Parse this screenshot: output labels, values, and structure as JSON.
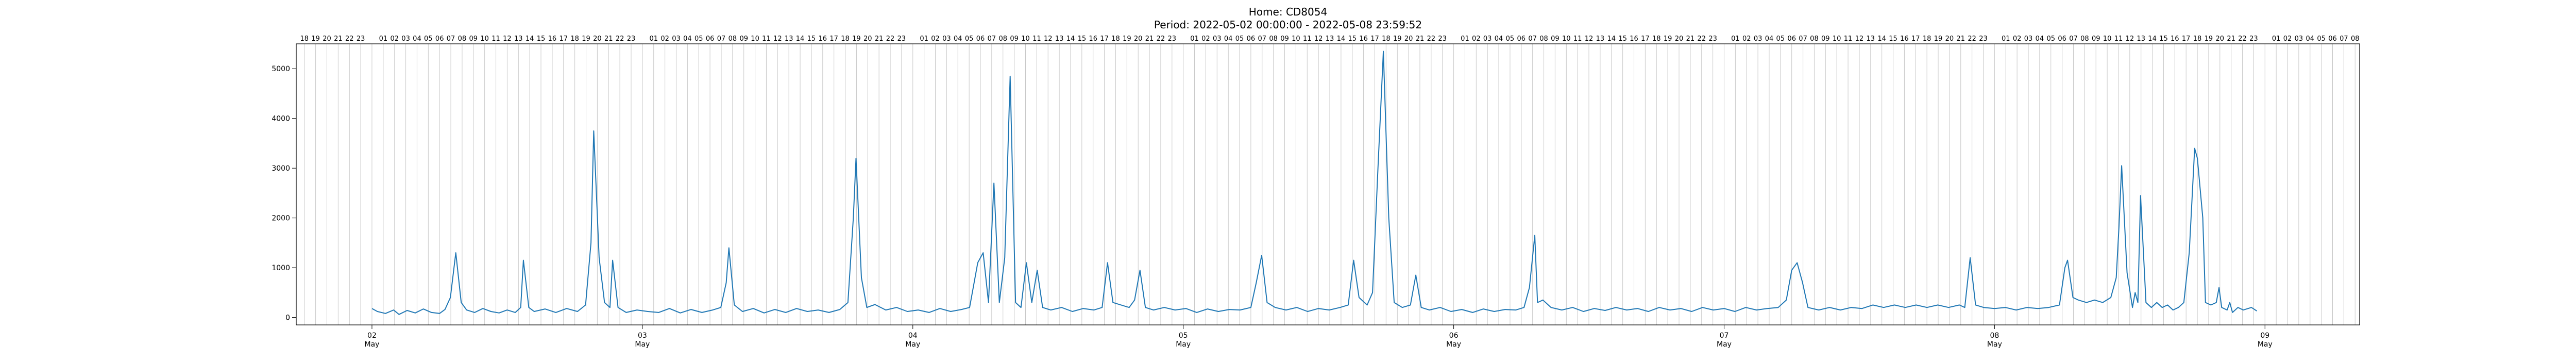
{
  "chart_data": {
    "type": "line",
    "title": "Home: CD8054",
    "subtitle": "Period: 2022-05-02 00:00:00 - 2022-05-08 23:59:52",
    "xlabel": "",
    "ylabel": "",
    "xlim_days": [
      1.72,
      9.35
    ],
    "ylim": [
      -150,
      5500
    ],
    "y_ticks": [
      0,
      1000,
      2000,
      3000,
      4000,
      5000
    ],
    "x_ticks": [
      {
        "day": 2,
        "label": "02",
        "sub": "May"
      },
      {
        "day": 3,
        "label": "03",
        "sub": "May"
      },
      {
        "day": 4,
        "label": "04",
        "sub": "May"
      },
      {
        "day": 5,
        "label": "05",
        "sub": "May"
      },
      {
        "day": 6,
        "label": "06",
        "sub": "May"
      },
      {
        "day": 7,
        "label": "07",
        "sub": "May"
      },
      {
        "day": 8,
        "label": "08",
        "sub": "May"
      },
      {
        "day": 9,
        "label": "09",
        "sub": "May"
      }
    ],
    "hour_label_pattern": [
      "16",
      "17",
      "18",
      "19",
      "20",
      "21",
      "22",
      "23"
    ],
    "grid": "vertical-hourly",
    "legend": "none",
    "series_color": "#1f77b4",
    "series": [
      {
        "points": [
          [
            2.0,
            180
          ],
          [
            2.02,
            120
          ],
          [
            2.05,
            80
          ],
          [
            2.08,
            150
          ],
          [
            2.1,
            60
          ],
          [
            2.13,
            140
          ],
          [
            2.16,
            90
          ],
          [
            2.19,
            170
          ],
          [
            2.22,
            100
          ],
          [
            2.25,
            80
          ],
          [
            2.27,
            160
          ],
          [
            2.29,
            400
          ],
          [
            2.31,
            1300
          ],
          [
            2.33,
            300
          ],
          [
            2.35,
            150
          ],
          [
            2.38,
            100
          ],
          [
            2.41,
            180
          ],
          [
            2.44,
            120
          ],
          [
            2.47,
            90
          ],
          [
            2.5,
            150
          ],
          [
            2.53,
            100
          ],
          [
            2.55,
            200
          ],
          [
            2.56,
            1150
          ],
          [
            2.58,
            200
          ],
          [
            2.6,
            120
          ],
          [
            2.64,
            170
          ],
          [
            2.68,
            100
          ],
          [
            2.72,
            180
          ],
          [
            2.76,
            120
          ],
          [
            2.79,
            250
          ],
          [
            2.81,
            1500
          ],
          [
            2.82,
            3750
          ],
          [
            2.84,
            1200
          ],
          [
            2.86,
            300
          ],
          [
            2.88,
            200
          ],
          [
            2.89,
            1150
          ],
          [
            2.91,
            200
          ],
          [
            2.94,
            100
          ],
          [
            2.98,
            150
          ],
          [
            3.02,
            120
          ],
          [
            3.06,
            100
          ],
          [
            3.1,
            180
          ],
          [
            3.14,
            90
          ],
          [
            3.18,
            160
          ],
          [
            3.22,
            100
          ],
          [
            3.26,
            150
          ],
          [
            3.29,
            200
          ],
          [
            3.31,
            700
          ],
          [
            3.32,
            1400
          ],
          [
            3.34,
            250
          ],
          [
            3.37,
            120
          ],
          [
            3.41,
            180
          ],
          [
            3.45,
            90
          ],
          [
            3.49,
            160
          ],
          [
            3.53,
            100
          ],
          [
            3.57,
            180
          ],
          [
            3.61,
            120
          ],
          [
            3.65,
            150
          ],
          [
            3.69,
            100
          ],
          [
            3.73,
            160
          ],
          [
            3.76,
            300
          ],
          [
            3.78,
            2000
          ],
          [
            3.79,
            3200
          ],
          [
            3.81,
            800
          ],
          [
            3.83,
            200
          ],
          [
            3.86,
            260
          ],
          [
            3.9,
            150
          ],
          [
            3.94,
            200
          ],
          [
            3.98,
            120
          ],
          [
            4.02,
            150
          ],
          [
            4.06,
            100
          ],
          [
            4.1,
            180
          ],
          [
            4.14,
            120
          ],
          [
            4.18,
            160
          ],
          [
            4.21,
            200
          ],
          [
            4.24,
            1100
          ],
          [
            4.26,
            1300
          ],
          [
            4.28,
            300
          ],
          [
            4.3,
            2700
          ],
          [
            4.32,
            300
          ],
          [
            4.34,
            1200
          ],
          [
            4.36,
            4850
          ],
          [
            4.38,
            300
          ],
          [
            4.4,
            200
          ],
          [
            4.42,
            1100
          ],
          [
            4.44,
            300
          ],
          [
            4.46,
            950
          ],
          [
            4.48,
            200
          ],
          [
            4.51,
            150
          ],
          [
            4.55,
            200
          ],
          [
            4.59,
            120
          ],
          [
            4.63,
            180
          ],
          [
            4.67,
            150
          ],
          [
            4.7,
            200
          ],
          [
            4.72,
            1100
          ],
          [
            4.74,
            300
          ],
          [
            4.77,
            250
          ],
          [
            4.8,
            200
          ],
          [
            4.82,
            350
          ],
          [
            4.84,
            950
          ],
          [
            4.86,
            200
          ],
          [
            4.89,
            150
          ],
          [
            4.93,
            200
          ],
          [
            4.97,
            150
          ],
          [
            5.01,
            180
          ],
          [
            5.05,
            100
          ],
          [
            5.09,
            170
          ],
          [
            5.13,
            120
          ],
          [
            5.17,
            160
          ],
          [
            5.21,
            150
          ],
          [
            5.25,
            200
          ],
          [
            5.27,
            700
          ],
          [
            5.29,
            1250
          ],
          [
            5.31,
            300
          ],
          [
            5.34,
            200
          ],
          [
            5.38,
            150
          ],
          [
            5.42,
            200
          ],
          [
            5.46,
            120
          ],
          [
            5.5,
            180
          ],
          [
            5.54,
            150
          ],
          [
            5.58,
            200
          ],
          [
            5.61,
            250
          ],
          [
            5.63,
            1150
          ],
          [
            5.65,
            400
          ],
          [
            5.68,
            250
          ],
          [
            5.7,
            500
          ],
          [
            5.72,
            3000
          ],
          [
            5.74,
            5350
          ],
          [
            5.76,
            2000
          ],
          [
            5.78,
            300
          ],
          [
            5.81,
            200
          ],
          [
            5.84,
            250
          ],
          [
            5.86,
            850
          ],
          [
            5.88,
            200
          ],
          [
            5.91,
            150
          ],
          [
            5.95,
            200
          ],
          [
            5.99,
            120
          ],
          [
            6.03,
            160
          ],
          [
            6.07,
            100
          ],
          [
            6.11,
            170
          ],
          [
            6.15,
            120
          ],
          [
            6.19,
            160
          ],
          [
            6.23,
            150
          ],
          [
            6.26,
            200
          ],
          [
            6.28,
            600
          ],
          [
            6.3,
            1650
          ],
          [
            6.31,
            300
          ],
          [
            6.33,
            350
          ],
          [
            6.36,
            200
          ],
          [
            6.4,
            150
          ],
          [
            6.44,
            200
          ],
          [
            6.48,
            120
          ],
          [
            6.52,
            180
          ],
          [
            6.56,
            140
          ],
          [
            6.6,
            200
          ],
          [
            6.64,
            150
          ],
          [
            6.68,
            180
          ],
          [
            6.72,
            120
          ],
          [
            6.76,
            200
          ],
          [
            6.8,
            150
          ],
          [
            6.84,
            180
          ],
          [
            6.88,
            120
          ],
          [
            6.92,
            200
          ],
          [
            6.96,
            150
          ],
          [
            7.0,
            180
          ],
          [
            7.04,
            120
          ],
          [
            7.08,
            200
          ],
          [
            7.12,
            150
          ],
          [
            7.16,
            180
          ],
          [
            7.2,
            200
          ],
          [
            7.23,
            350
          ],
          [
            7.25,
            950
          ],
          [
            7.27,
            1100
          ],
          [
            7.29,
            700
          ],
          [
            7.31,
            200
          ],
          [
            7.35,
            150
          ],
          [
            7.39,
            200
          ],
          [
            7.43,
            150
          ],
          [
            7.47,
            200
          ],
          [
            7.51,
            180
          ],
          [
            7.55,
            250
          ],
          [
            7.59,
            200
          ],
          [
            7.63,
            250
          ],
          [
            7.67,
            200
          ],
          [
            7.71,
            250
          ],
          [
            7.75,
            200
          ],
          [
            7.79,
            250
          ],
          [
            7.83,
            200
          ],
          [
            7.87,
            250
          ],
          [
            7.89,
            200
          ],
          [
            7.91,
            1200
          ],
          [
            7.93,
            250
          ],
          [
            7.96,
            200
          ],
          [
            8.0,
            180
          ],
          [
            8.04,
            200
          ],
          [
            8.08,
            150
          ],
          [
            8.12,
            200
          ],
          [
            8.16,
            180
          ],
          [
            8.2,
            200
          ],
          [
            8.24,
            250
          ],
          [
            8.26,
            1000
          ],
          [
            8.27,
            1150
          ],
          [
            8.29,
            400
          ],
          [
            8.31,
            350
          ],
          [
            8.34,
            300
          ],
          [
            8.37,
            350
          ],
          [
            8.4,
            300
          ],
          [
            8.43,
            400
          ],
          [
            8.45,
            800
          ],
          [
            8.46,
            1800
          ],
          [
            8.47,
            3050
          ],
          [
            8.49,
            900
          ],
          [
            8.51,
            200
          ],
          [
            8.52,
            500
          ],
          [
            8.53,
            300
          ],
          [
            8.54,
            2450
          ],
          [
            8.56,
            300
          ],
          [
            8.58,
            200
          ],
          [
            8.6,
            300
          ],
          [
            8.62,
            200
          ],
          [
            8.64,
            250
          ],
          [
            8.66,
            150
          ],
          [
            8.68,
            200
          ],
          [
            8.7,
            300
          ],
          [
            8.72,
            1300
          ],
          [
            8.74,
            3400
          ],
          [
            8.75,
            3200
          ],
          [
            8.77,
            2000
          ],
          [
            8.78,
            300
          ],
          [
            8.8,
            250
          ],
          [
            8.82,
            300
          ],
          [
            8.83,
            600
          ],
          [
            8.84,
            200
          ],
          [
            8.86,
            150
          ],
          [
            8.87,
            300
          ],
          [
            8.88,
            100
          ],
          [
            8.9,
            200
          ],
          [
            8.92,
            150
          ],
          [
            8.95,
            200
          ],
          [
            8.97,
            130
          ]
        ]
      }
    ]
  }
}
